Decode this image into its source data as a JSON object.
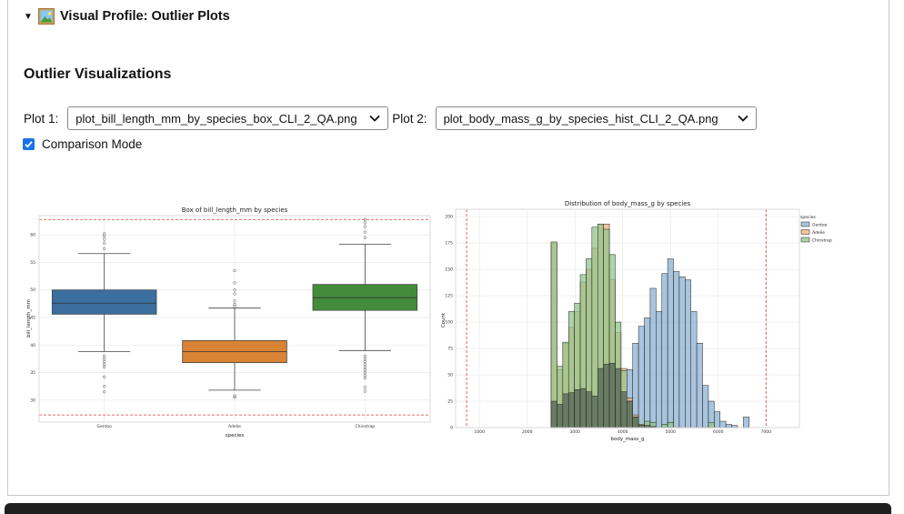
{
  "summary": {
    "title": "Visual Profile: Outlier Plots"
  },
  "section": {
    "title": "Outlier Visualizations"
  },
  "controls": {
    "plot1_label": "Plot 1:",
    "plot1_value": "plot_bill_length_mm_by_species_box_CLI_2_QA.png",
    "plot2_label": "Plot 2:",
    "plot2_value": "plot_body_mass_g_by_species_hist_CLI_2_QA.png",
    "comparison_label": "Comparison Mode",
    "comparison_checked": true
  },
  "colors": {
    "gentoo": "#3a6f9f",
    "adelie": "#d98335",
    "chinstrap": "#438c3b",
    "hist_gentoo": "#8cb0d1",
    "hist_adelie": "#e8b37a",
    "hist_chinstrap": "#93c48c",
    "threshold": "#e03c31"
  },
  "icons": {
    "toggle": "triangle-down-icon",
    "picture": "framed-picture-icon",
    "dropdown": "chevron-down-icon",
    "checkbox": "checkmark-icon"
  },
  "chart_data": [
    {
      "type": "box",
      "title": "Box of bill_length_mm by species",
      "xlabel": "species",
      "ylabel": "bill_length_mm",
      "categories": [
        "Gentoo",
        "Adelie",
        "Chinstrap"
      ],
      "ylim": [
        26,
        63.5
      ],
      "yticks": [
        30,
        35,
        40,
        45,
        50,
        55,
        60
      ],
      "boxes": [
        {
          "name": "Gentoo",
          "whislo": 38.8,
          "q1": 45.6,
          "med": 47.6,
          "q3": 50.0,
          "whishi": 56.6,
          "fliers": [
            31.5,
            32.5,
            34.2,
            36.0,
            36.5,
            37.0,
            37.5,
            38.0,
            57.5,
            58.5,
            59.2,
            59.8,
            60.2
          ]
        },
        {
          "name": "Adelie",
          "whislo": 31.8,
          "q1": 36.8,
          "med": 38.8,
          "q3": 40.8,
          "whishi": 46.7,
          "fliers": [
            30.5,
            30.8,
            47.0,
            47.4,
            48.0,
            49.3,
            50.0,
            51.3,
            53.5
          ]
        },
        {
          "name": "Chinstrap",
          "whislo": 39.0,
          "q1": 46.3,
          "med": 48.6,
          "q3": 51.0,
          "whishi": 58.3,
          "fliers": [
            31.6,
            32.3,
            34.0,
            34.5,
            35.0,
            35.5,
            36.0,
            36.5,
            37.0,
            37.5,
            38.0,
            59.5,
            60.5,
            61.5,
            62.2,
            62.8
          ]
        }
      ],
      "threshold_lines": [
        27.3,
        62.8
      ],
      "grid": true
    },
    {
      "type": "histogram",
      "title": "Distribution of body_mass_g by species",
      "xlabel": "body_mass_g",
      "ylabel": "Count",
      "xlim": [
        500,
        7700
      ],
      "ylim": [
        0,
        207
      ],
      "xticks": [
        1000,
        2000,
        3000,
        4000,
        5000,
        6000,
        7000
      ],
      "yticks": [
        0,
        25,
        50,
        75,
        100,
        125,
        150,
        175,
        200
      ],
      "legend": {
        "title": "species",
        "position": "upper-right",
        "entries": [
          "Gentoo",
          "Adelie",
          "Chinstrap"
        ]
      },
      "bin_start": 2500,
      "bin_width": 122,
      "series": [
        {
          "name": "Gentoo",
          "values": [
            0,
            0,
            0,
            0,
            0,
            0,
            0,
            0,
            0,
            0,
            0,
            5,
            20,
            55,
            80,
            96,
            104,
            132,
            110,
            146,
            160,
            148,
            143,
            140,
            110,
            80,
            40,
            25,
            15,
            6,
            3,
            2,
            0,
            10,
            0
          ]
        },
        {
          "name": "Adelie",
          "values": [
            175,
            55,
            80,
            95,
            110,
            138,
            150,
            170,
            193,
            193,
            140,
            90,
            56,
            28,
            12,
            3,
            2,
            1,
            0,
            0,
            0,
            0,
            0,
            0,
            0,
            0,
            0,
            0,
            0,
            0,
            0,
            0,
            0,
            0,
            0
          ]
        },
        {
          "name": "Chinstrap",
          "values": [
            176,
            58,
            81,
            110,
            118,
            145,
            160,
            190,
            193,
            188,
            164,
            100,
            54,
            25,
            10,
            2,
            6,
            5,
            0,
            3,
            5,
            0,
            0,
            0,
            0,
            0,
            0,
            5,
            0,
            0,
            0,
            0,
            0,
            0,
            0
          ]
        }
      ],
      "overlap_values": [
        25,
        22,
        32,
        33,
        36,
        37,
        34,
        30,
        56,
        60,
        61,
        56,
        34,
        25,
        10,
        2,
        2,
        1,
        0,
        0,
        0,
        0,
        0,
        0,
        0,
        0,
        0,
        0,
        0,
        0,
        0,
        0,
        0,
        0,
        0
      ],
      "threshold_lines": [
        730,
        7000
      ],
      "grid": true
    }
  ]
}
